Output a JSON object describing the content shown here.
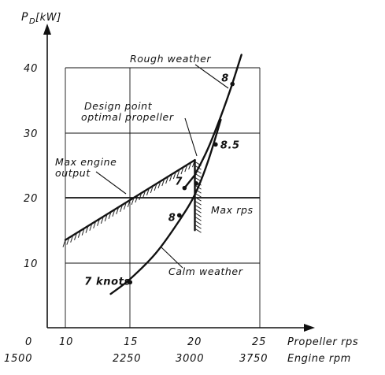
{
  "chart_data": {
    "type": "line",
    "ylabel_main": "P",
    "ylabel_sub": "D",
    "ylabel_unit": "[kW]",
    "y_ticks": [
      "40",
      "30",
      "20",
      "10"
    ],
    "x_ticks": [
      "0",
      "10",
      "15",
      "20",
      "25"
    ],
    "x_ticks_rpm": [
      "1500",
      "2250",
      "3000",
      "3750"
    ],
    "xlabel": "Propeller rps",
    "xlabel2": "Engine rpm",
    "xlim": [
      0,
      25
    ],
    "ylim": [
      0,
      40
    ],
    "grid": true,
    "series": [
      {
        "name": "Rough weather",
        "points": [
          [
            20.0,
            23.5
          ],
          [
            21.0,
            27.5
          ],
          [
            22.0,
            32.5
          ],
          [
            22.8,
            37.0
          ],
          [
            23.6,
            42.0
          ]
        ],
        "marks": [
          {
            "x": 20.1,
            "y": 22.2,
            "label": ""
          },
          {
            "x": 22.9,
            "y": 37.5,
            "label": "8"
          }
        ],
        "extra_mark": {
          "x": 19.2,
          "y": 21.5,
          "label": "7"
        }
      },
      {
        "name": "Calm weather",
        "points": [
          [
            13.5,
            5.2
          ],
          [
            15.0,
            7.5
          ],
          [
            17.0,
            11.5
          ],
          [
            18.8,
            16.5
          ],
          [
            20.0,
            20.5
          ],
          [
            21.0,
            25.5
          ],
          [
            22.0,
            32.0
          ]
        ],
        "marks": [
          {
            "x": 15.0,
            "y": 7.0,
            "label": "7 knots"
          },
          {
            "x": 18.8,
            "y": 17.3,
            "label": "8"
          },
          {
            "x": 21.6,
            "y": 28.2,
            "label": "8.5"
          }
        ]
      }
    ],
    "limits": {
      "max_engine_output": [
        [
          10.0,
          13.5
        ],
        [
          20.0,
          25.8
        ]
      ],
      "max_rps": {
        "x": 20.0,
        "y_from": 15.0,
        "y_to": 25.8
      }
    },
    "annotations": {
      "rough_weather": "Rough weather",
      "design_point_1": "Design point",
      "design_point_2": "optimal propeller",
      "max_output_1": "Max engine",
      "max_output_2": "output",
      "max_rps": "Max rps",
      "calm_weather": "Calm weather"
    }
  }
}
